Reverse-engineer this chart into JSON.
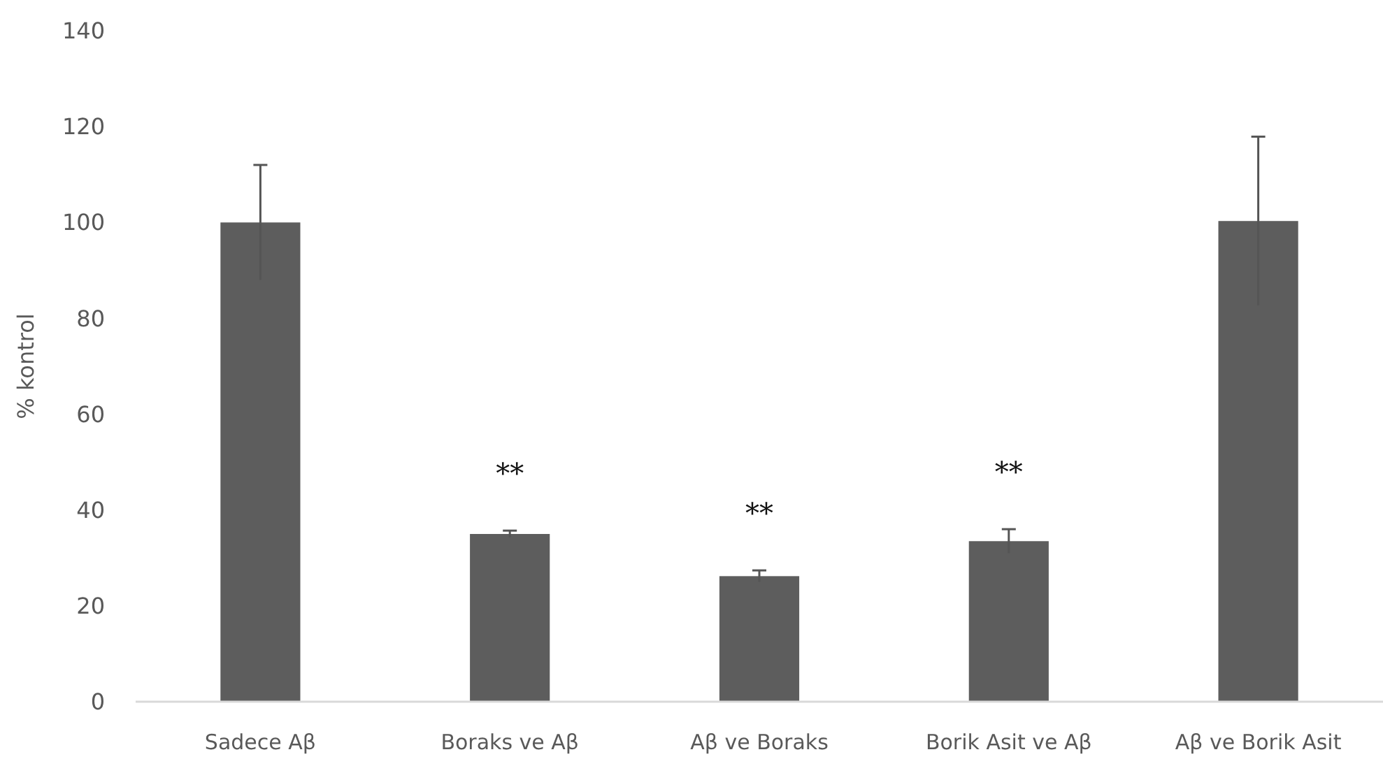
{
  "chart_data": {
    "type": "bar",
    "ylabel": "% kontrol",
    "categories": [
      "Sadece Aβ",
      "Boraks ve Aβ",
      "Aβ ve Boraks",
      "Borik Asit ve Aβ",
      "Aβ ve Borik Asit"
    ],
    "values": [
      100,
      35,
      26.2,
      33.5,
      100.3
    ],
    "errors": [
      12,
      0.7,
      1.2,
      2.5,
      17.6
    ],
    "color": "#5d5d5d",
    "ylim": [
      0,
      140
    ],
    "yticks": [
      0,
      20,
      40,
      60,
      80,
      100,
      120,
      140
    ],
    "grid": false,
    "annotations": [
      {
        "text": "**",
        "x": "Boraks ve Aβ",
        "y": 35.7
      },
      {
        "text": "**",
        "x": "Aβ ve Boraks",
        "y": 27.4
      },
      {
        "text": "**",
        "x": "Borik Asit ve Aβ",
        "y": 36
      }
    ]
  }
}
